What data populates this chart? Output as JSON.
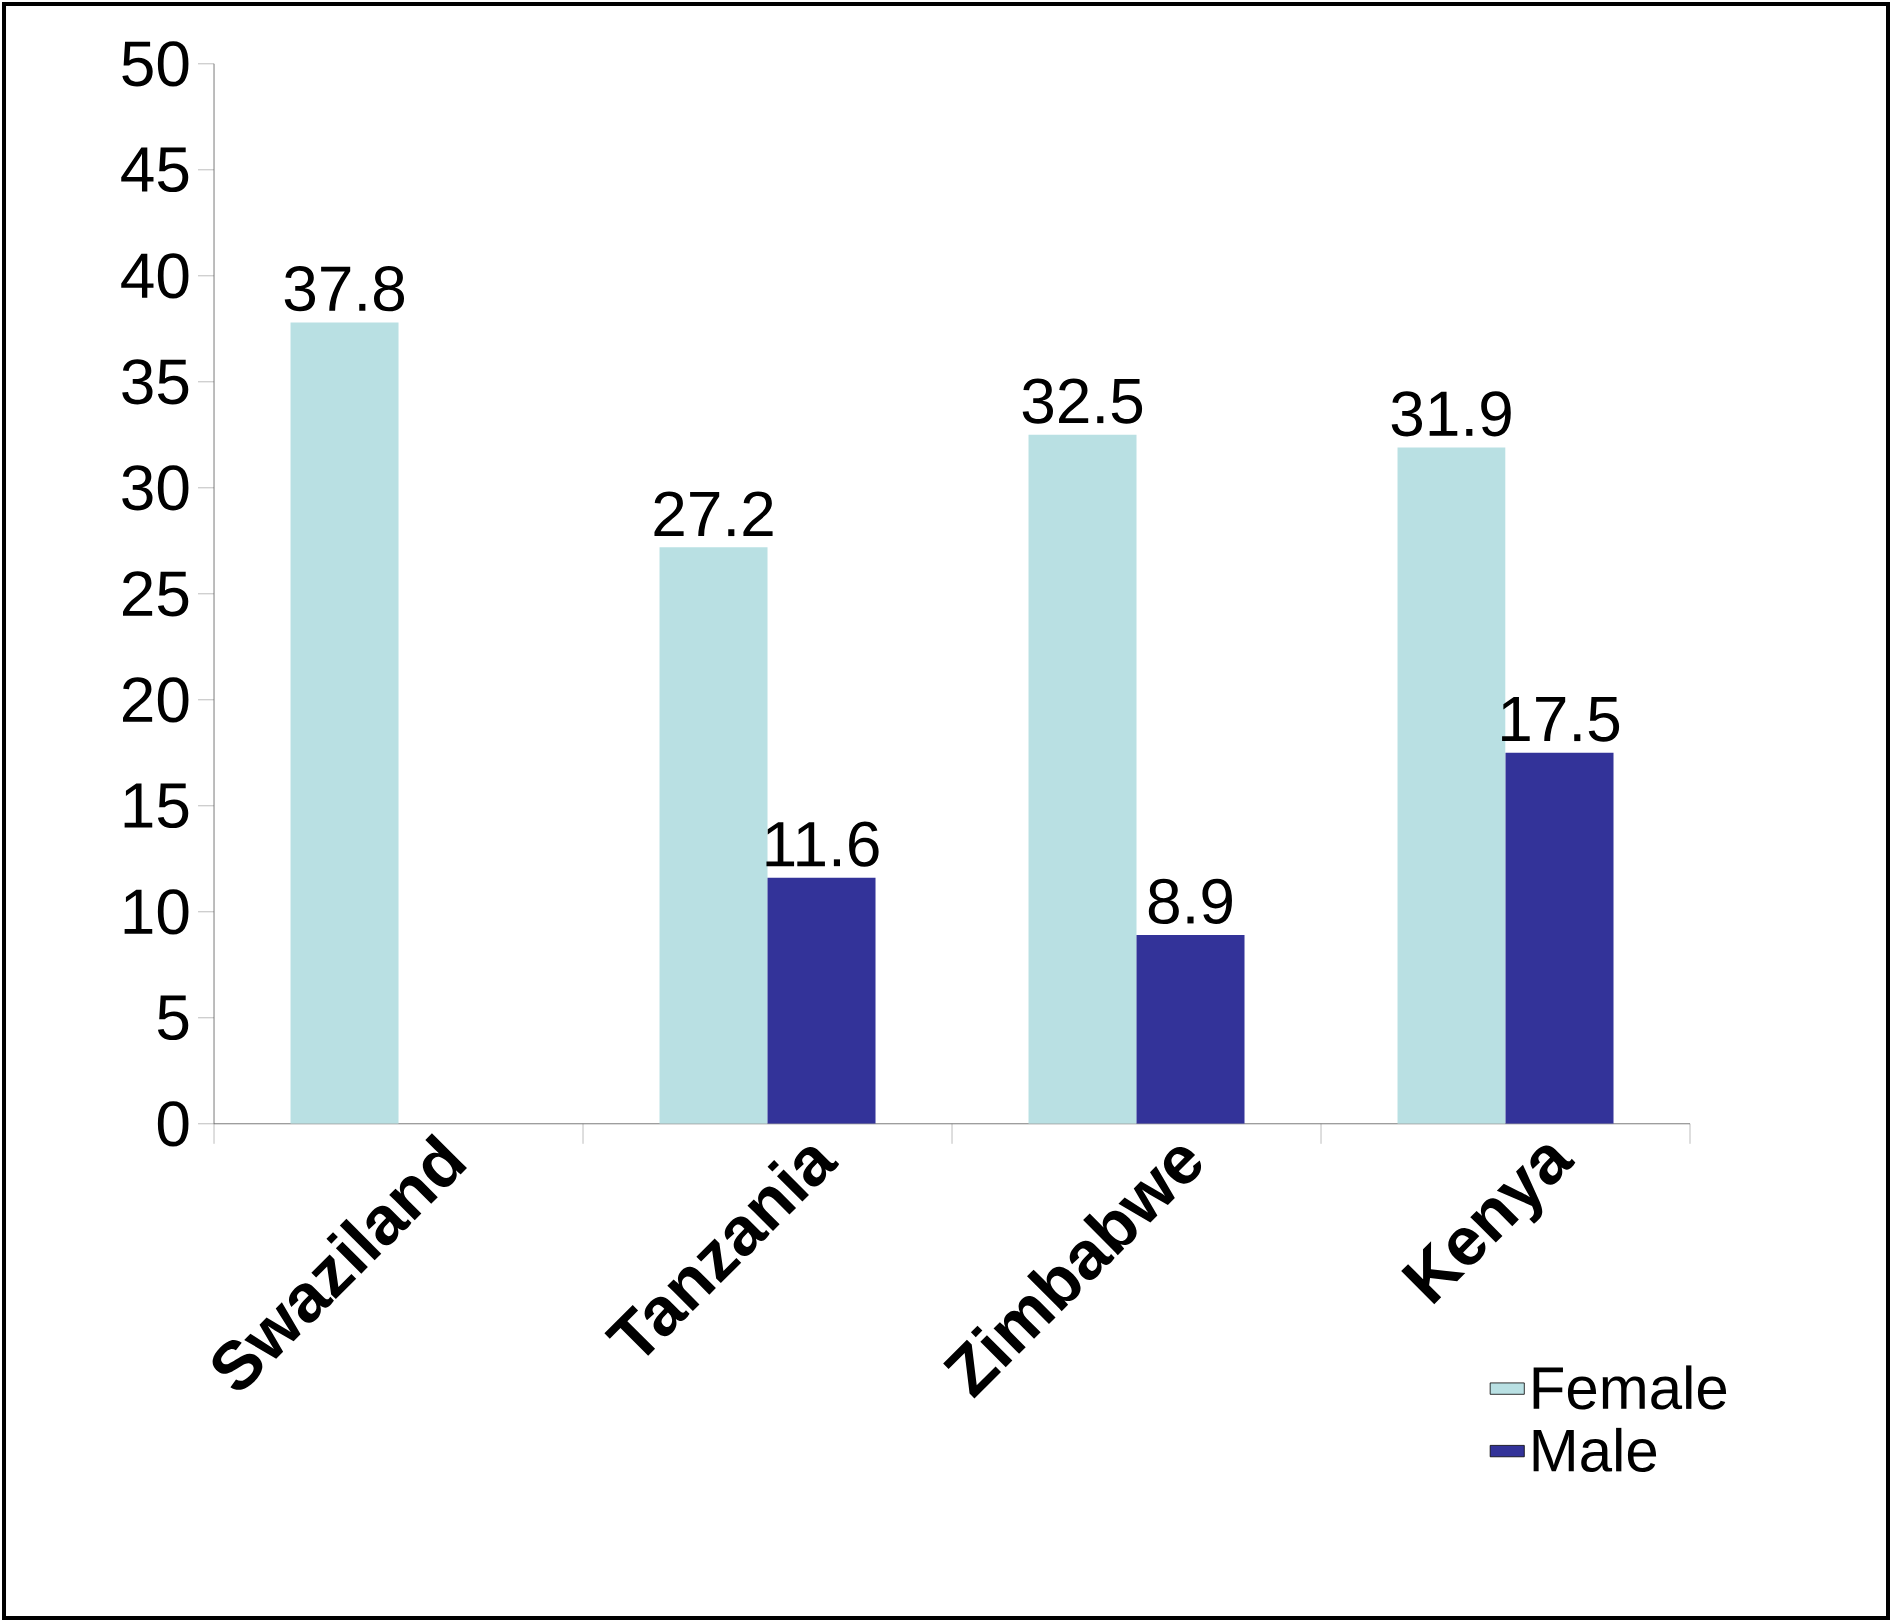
{
  "chart_data": {
    "type": "bar",
    "categories": [
      "Swaziland",
      "Tanzania",
      "Zimbabwe",
      "Kenya"
    ],
    "series": [
      {
        "name": "Female",
        "color": "#b9e0e3",
        "values": [
          37.8,
          27.2,
          32.5,
          31.9
        ]
      },
      {
        "name": "Male",
        "color": "#333399",
        "values": [
          null,
          11.6,
          8.9,
          17.5
        ]
      }
    ],
    "ylim": [
      0,
      50
    ],
    "yticks": [
      0,
      5,
      10,
      15,
      20,
      25,
      30,
      35,
      40,
      45,
      50
    ],
    "data_labels": true,
    "legend": "bottom right"
  }
}
